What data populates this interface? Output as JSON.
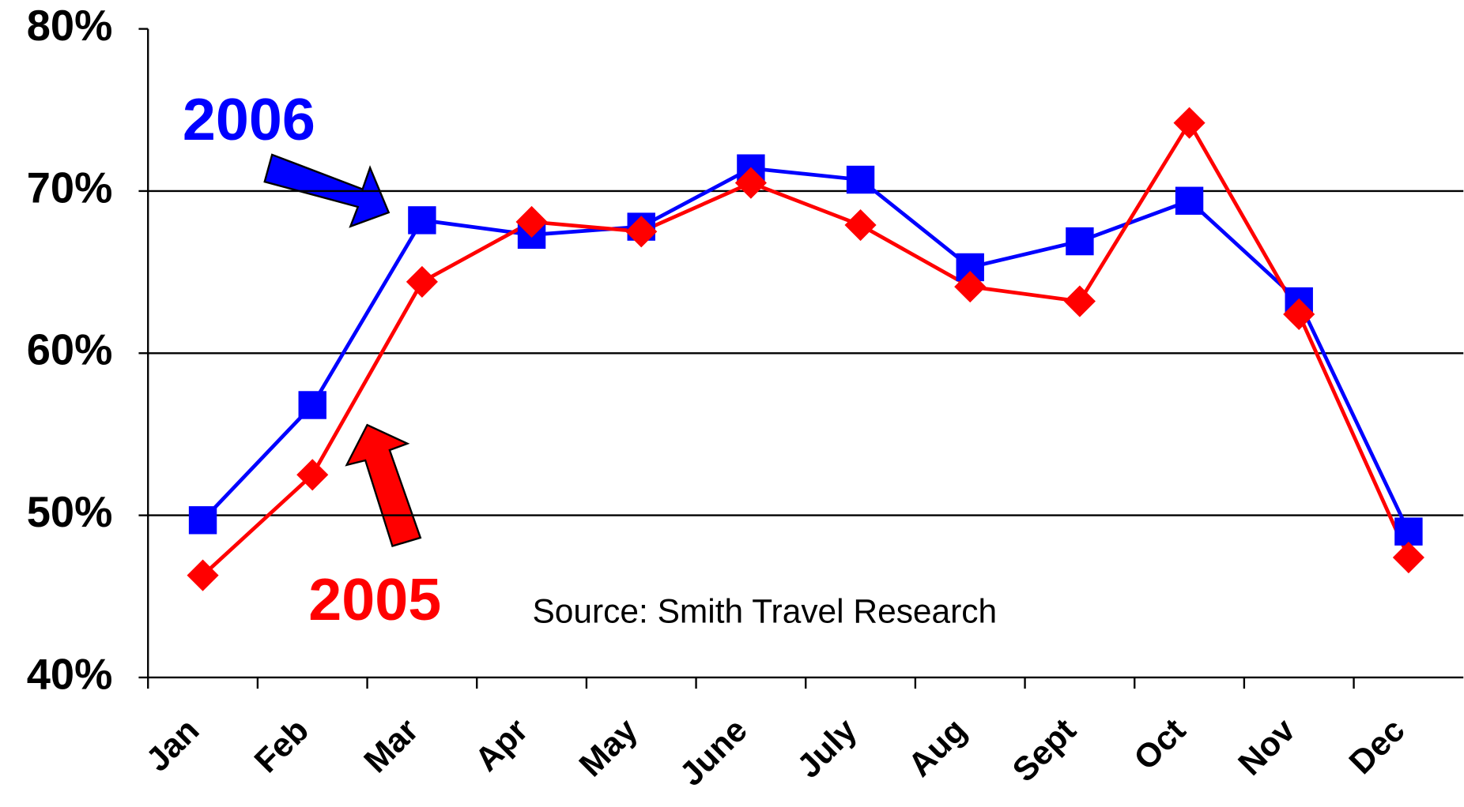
{
  "chart_data": {
    "type": "line",
    "categories": [
      "Jan",
      "Feb",
      "Mar",
      "Apr",
      "May",
      "June",
      "July",
      "Aug",
      "Sept",
      "Oct",
      "Nov",
      "Dec"
    ],
    "series": [
      {
        "name": "2006",
        "color": "#0000ff",
        "marker": "square",
        "values": [
          49.7,
          56.8,
          68.2,
          67.3,
          67.8,
          71.4,
          70.7,
          65.3,
          66.9,
          69.4,
          63.2,
          49.0
        ]
      },
      {
        "name": "2005",
        "color": "#ff0000",
        "marker": "diamond",
        "values": [
          46.3,
          52.5,
          64.4,
          68.1,
          67.5,
          70.5,
          67.9,
          64.1,
          63.2,
          74.2,
          62.4,
          47.4
        ]
      }
    ],
    "ylim": [
      40,
      80
    ],
    "yticks": [
      {
        "value": 40,
        "label": "40%"
      },
      {
        "value": 50,
        "label": "50%"
      },
      {
        "value": 60,
        "label": "60%"
      },
      {
        "value": 70,
        "label": "70%"
      },
      {
        "value": 80,
        "label": "80%"
      }
    ],
    "grid": true,
    "annotations": [
      "Source: Smith Travel Research"
    ]
  }
}
